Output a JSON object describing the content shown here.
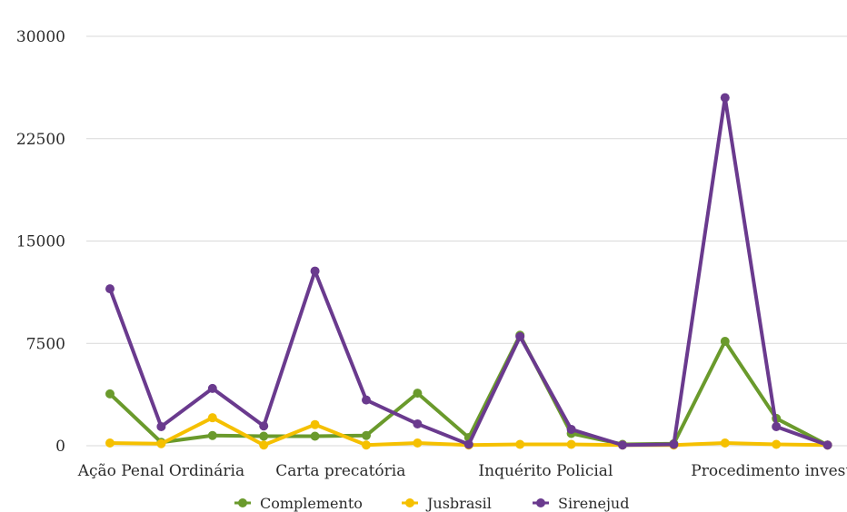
{
  "chart_data": {
    "type": "line",
    "title": "",
    "xlabel": "",
    "ylabel": "",
    "ylim": [
      0,
      30000
    ],
    "yticks": [
      0,
      7500,
      15000,
      22500,
      30000
    ],
    "ytick_labels": [
      "0",
      "7500",
      "15000",
      "22500",
      "30000"
    ],
    "x": [
      1,
      2,
      3,
      4,
      5,
      6,
      7,
      8,
      9,
      10,
      11,
      12,
      13,
      14,
      15,
      16
    ],
    "category_labels": [
      {
        "label": "Ação Penal Ordinária",
        "at": 2
      },
      {
        "label": "Carta precatória",
        "at": 5.5
      },
      {
        "label": "Inquérito Policial",
        "at": 9.5
      },
      {
        "label": "Procedimento investigatório",
        "at": 14.5
      }
    ],
    "grid": true,
    "legend_position": "bottom",
    "series": [
      {
        "name": "Complemento",
        "color": "#6a9a2c",
        "values": [
          3800,
          250,
          750,
          700,
          700,
          750,
          3850,
          600,
          8100,
          900,
          100,
          150,
          7650,
          2000,
          50,
          null
        ]
      },
      {
        "name": "Jusbrasil",
        "color": "#f5c000",
        "values": [
          200,
          150,
          2050,
          50,
          1550,
          50,
          200,
          50,
          100,
          100,
          50,
          50,
          200,
          100,
          50,
          null
        ]
      },
      {
        "name": "Sirenejud",
        "color": "#6a3a8e",
        "values": [
          11500,
          1400,
          4200,
          1450,
          12800,
          3350,
          1600,
          100,
          8000,
          1200,
          50,
          100,
          25500,
          1400,
          50,
          null
        ]
      }
    ]
  }
}
